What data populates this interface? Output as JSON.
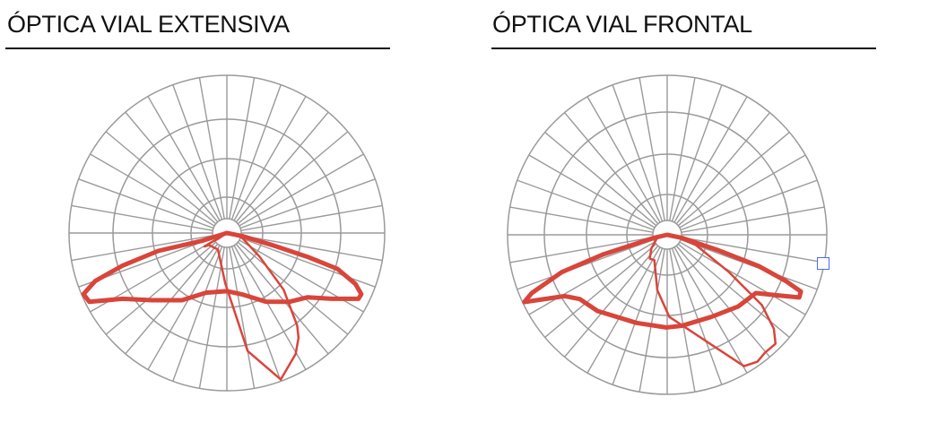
{
  "colors": {
    "grid": "#9a9a9a",
    "curve": "#d9453a",
    "handle": "#4a6cf0"
  },
  "chart_data": [
    {
      "type": "polar",
      "title": "ÓPTICA VIAL EXTENSIVA",
      "angle_step_deg": 10,
      "rings": 4,
      "grid": true,
      "series": [
        {
          "style": "thick",
          "points": [
            [
              0,
              0
            ],
            [
              78.7,
              0.097
            ],
            [
              75.1,
              0.294
            ],
            [
              73.5,
              0.533
            ],
            [
              72.0,
              0.737
            ],
            [
              68.4,
              0.876
            ],
            [
              65.5,
              0.936
            ],
            [
              63.4,
              0.932
            ],
            [
              57.8,
              0.783
            ],
            [
              51.5,
              0.654
            ],
            [
              42.4,
              0.59
            ],
            [
              29.5,
              0.5
            ],
            [
              13.7,
              0.4
            ],
            [
              0,
              0.369
            ],
            [
              -19.3,
              0.401
            ],
            [
              -33.7,
              0.512
            ],
            [
              -48.0,
              0.637
            ],
            [
              -57.8,
              0.783
            ],
            [
              -63.4,
              0.974
            ],
            [
              -66.9,
              0.988
            ],
            [
              -70.0,
              0.887
            ],
            [
              -72.6,
              0.695
            ],
            [
              -75.4,
              0.45
            ],
            [
              -72.6,
              0.159
            ],
            [
              0,
              0
            ]
          ]
        },
        {
          "style": "thin",
          "points": [
            [
              0,
              0
            ],
            [
              73.3,
              0.099
            ],
            [
              54.0,
              0.258
            ],
            [
              45.0,
              0.509
            ],
            [
              37.2,
              0.737
            ],
            [
              34.4,
              0.804
            ],
            [
              29.6,
              0.882
            ],
            [
              20.2,
              0.989
            ],
            [
              10.0,
              0.76
            ],
            [
              -1.7,
              0.322
            ],
            [
              -28.6,
              0.119
            ],
            [
              -56.3,
              0.137
            ],
            [
              -59.0,
              0.166
            ],
            [
              -59.0,
              0.11
            ],
            [
              -56.3,
              0.068
            ],
            [
              0,
              0
            ]
          ]
        }
      ]
    },
    {
      "type": "polar",
      "title": "ÓPTICA VIAL FRONTAL",
      "angle_step_deg": 10,
      "rings": 4,
      "grid": true,
      "series": [
        {
          "style": "thick",
          "points": [
            [
              0,
              0
            ],
            [
              78.0,
              0.09
            ],
            [
              73.3,
              0.326
            ],
            [
              71.1,
              0.607
            ],
            [
              68.7,
              0.798
            ],
            [
              67.0,
              0.91
            ],
            [
              64.6,
              0.916
            ],
            [
              61.1,
              0.785
            ],
            [
              56.7,
              0.665
            ],
            [
              44.6,
              0.632
            ],
            [
              28.1,
              0.584
            ],
            [
              8.8,
              0.578
            ],
            [
              -0.6,
              0.581
            ],
            [
              -19.2,
              0.585
            ],
            [
              -42.4,
              0.647
            ],
            [
              -53.7,
              0.68
            ],
            [
              -59.1,
              0.748
            ],
            [
              -64.8,
              0.989
            ],
            [
              -66.7,
              0.924
            ],
            [
              -70.5,
              0.701
            ],
            [
              -73.0,
              0.417
            ],
            [
              -77.0,
              0.083
            ],
            [
              0,
              0
            ]
          ]
        },
        {
          "style": "thin",
          "points": [
            [
              0,
              0
            ],
            [
              79.5,
              0.051
            ],
            [
              70.2,
              0.193
            ],
            [
              58.9,
              0.453
            ],
            [
              53.4,
              0.739
            ],
            [
              48.6,
              0.891
            ],
            [
              44.8,
              0.963
            ],
            [
              39.6,
              0.96
            ],
            [
              35.4,
              0.976
            ],
            [
              30.3,
              0.954
            ],
            [
              1.5,
              0.515
            ],
            [
              -10.1,
              0.352
            ],
            [
              -26.8,
              0.178
            ],
            [
              -36.0,
              0.185
            ],
            [
              -49.7,
              0.13
            ],
            [
              -73.0,
              0.065
            ],
            [
              0,
              0
            ]
          ]
        }
      ]
    }
  ]
}
